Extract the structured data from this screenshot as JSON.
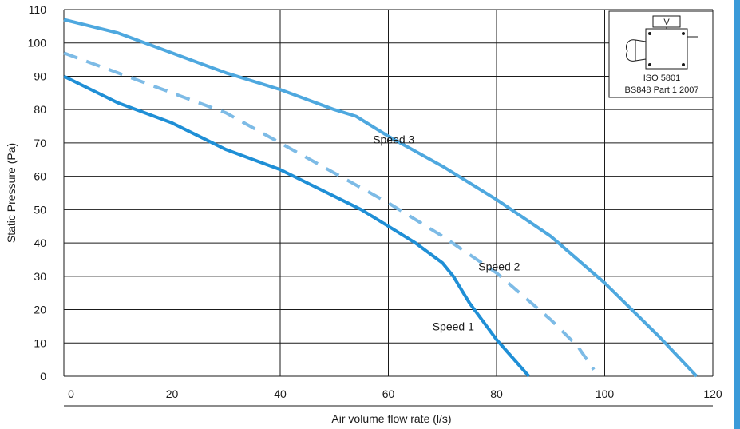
{
  "colors": {
    "accent": "#3a9ad9",
    "speed1": "#1f8fd6",
    "speed2": "#7dbbe6",
    "speed3": "#4ea8df",
    "grid": "#1a1a1a"
  },
  "standard_box": {
    "icon": "fan-test-rig-icon",
    "line1": "ISO 5801",
    "line2": "BS848 Part 1 2007",
    "valve_letter": "V"
  },
  "chart_data": {
    "type": "line",
    "xlabel": "Air volume flow rate (l/s)",
    "ylabel": "Static Pressure (Pa)",
    "xlim": [
      0,
      120
    ],
    "ylim": [
      0,
      110
    ],
    "xticks": [
      0,
      20,
      40,
      60,
      80,
      100,
      120
    ],
    "yticks": [
      0,
      10,
      20,
      30,
      40,
      50,
      60,
      70,
      80,
      90,
      100,
      110
    ],
    "grid": true,
    "series": [
      {
        "name": "Speed 1",
        "style": "solid",
        "x": [
          0,
          10,
          20,
          30,
          40,
          45,
          50,
          55,
          60,
          65,
          70,
          72,
          75,
          80,
          86
        ],
        "y": [
          90,
          82,
          76,
          68,
          62,
          58,
          54,
          50,
          45,
          40,
          34,
          30,
          22,
          11,
          0
        ]
      },
      {
        "name": "Speed 2",
        "style": "dashed",
        "x": [
          0,
          10,
          20,
          30,
          40,
          50,
          60,
          70,
          80,
          90,
          95,
          98
        ],
        "y": [
          97,
          91,
          85,
          79,
          70,
          61,
          52,
          42,
          31,
          17,
          9,
          2
        ]
      },
      {
        "name": "Speed 3",
        "style": "solid",
        "x": [
          0,
          10,
          20,
          30,
          40,
          45,
          50,
          54,
          60,
          70,
          80,
          90,
          100,
          110,
          117
        ],
        "y": [
          107,
          103,
          97,
          91,
          86,
          83,
          80,
          78,
          72,
          63,
          53,
          42,
          28,
          12,
          0
        ]
      }
    ],
    "annotations": [
      {
        "text": "Speed 1",
        "x": 72,
        "y": 15
      },
      {
        "text": "Speed 2",
        "x": 80.5,
        "y": 33
      },
      {
        "text": "Speed 3",
        "x": 61,
        "y": 71
      }
    ]
  }
}
